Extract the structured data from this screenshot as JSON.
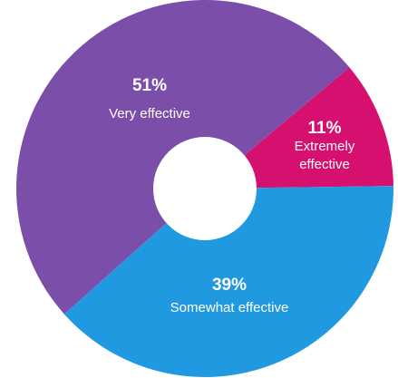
{
  "chart_data": {
    "type": "pie",
    "donut": true,
    "title": "",
    "categories": [
      "Extremely effective",
      "Somewhat effective",
      "Very effective"
    ],
    "values": [
      11,
      39,
      51
    ],
    "colors": [
      "#d6106e",
      "#2199e0",
      "#7b4fa9"
    ],
    "labels": [
      {
        "pct": "11%",
        "lines": [
          "Extremely",
          "effective"
        ]
      },
      {
        "pct": "39%",
        "lines": [
          "Somewhat effective"
        ]
      },
      {
        "pct": "51%",
        "lines": [
          "Very effective"
        ]
      }
    ]
  }
}
